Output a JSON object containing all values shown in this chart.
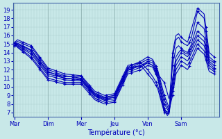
{
  "xlabel": "Température (°c)",
  "bg_color": "#c8e8e8",
  "line_color": "#0000bb",
  "ylim": [
    6.5,
    19.8
  ],
  "yticks": [
    7,
    8,
    9,
    10,
    11,
    12,
    13,
    14,
    15,
    16,
    17,
    18,
    19
  ],
  "day_labels": [
    "Mar",
    "Dim",
    "Mer",
    "Jeu",
    "Ven",
    "Sam"
  ],
  "series": [
    {
      "waypoints_t": [
        0,
        0.08,
        0.5,
        1.0,
        1.5,
        2.0,
        2.4,
        2.7,
        3.0,
        3.4,
        3.8,
        4.0,
        4.15,
        4.3,
        4.5,
        4.65,
        4.75,
        4.85,
        4.93,
        5.0,
        5.1,
        5.2,
        5.3,
        5.5,
        5.7,
        5.85,
        6.0
      ],
      "waypoints_v": [
        15.2,
        15.5,
        14.8,
        12.2,
        11.5,
        11.3,
        9.5,
        9.0,
        9.2,
        12.5,
        12.8,
        12.0,
        11.2,
        10.2,
        7.2,
        7.0,
        14.0,
        16.0,
        16.2,
        15.8,
        15.5,
        15.2,
        16.5,
        19.2,
        18.5,
        14.0,
        13.5
      ]
    },
    {
      "waypoints_t": [
        0,
        0.08,
        0.5,
        1.0,
        1.5,
        2.0,
        2.4,
        2.7,
        3.0,
        3.4,
        3.8,
        4.0,
        4.15,
        4.3,
        4.5,
        4.65,
        4.75,
        4.85,
        4.93,
        5.0,
        5.1,
        5.2,
        5.3,
        5.5,
        5.7,
        5.85,
        6.0
      ],
      "waypoints_v": [
        15.1,
        15.3,
        14.6,
        12.0,
        11.3,
        11.0,
        9.2,
        8.7,
        9.0,
        12.2,
        12.5,
        11.5,
        10.8,
        9.8,
        7.0,
        6.8,
        13.5,
        15.5,
        15.8,
        15.3,
        15.0,
        14.8,
        15.5,
        18.8,
        18.0,
        13.5,
        13.0
      ]
    },
    {
      "waypoints_t": [
        0,
        0.08,
        0.5,
        1.0,
        1.5,
        2.0,
        2.4,
        2.7,
        3.0,
        3.4,
        3.8,
        4.0,
        4.15,
        4.3,
        4.5,
        4.65,
        4.75,
        4.85,
        4.93,
        5.0,
        5.1,
        5.2,
        5.3,
        5.5,
        5.7,
        5.85,
        6.0
      ],
      "waypoints_v": [
        15.0,
        15.1,
        14.3,
        11.8,
        11.0,
        10.8,
        9.0,
        8.5,
        8.8,
        12.0,
        12.5,
        12.8,
        12.5,
        11.5,
        10.5,
        8.5,
        12.5,
        14.5,
        14.8,
        14.5,
        14.2,
        14.0,
        14.8,
        17.5,
        16.8,
        13.2,
        12.8
      ]
    },
    {
      "waypoints_t": [
        0,
        0.08,
        0.5,
        1.0,
        1.5,
        2.0,
        2.4,
        2.7,
        3.0,
        3.4,
        3.8,
        4.0,
        4.15,
        4.3,
        4.5,
        4.65,
        4.75,
        4.85,
        4.93,
        5.0,
        5.1,
        5.2,
        5.3,
        5.5,
        5.7,
        5.85,
        6.0
      ],
      "waypoints_v": [
        15.0,
        15.0,
        14.2,
        11.7,
        11.2,
        11.2,
        9.3,
        8.8,
        9.0,
        12.3,
        13.0,
        13.5,
        13.2,
        12.0,
        9.0,
        7.5,
        11.0,
        13.5,
        14.0,
        14.3,
        14.0,
        13.8,
        14.5,
        16.5,
        15.8,
        13.0,
        12.5
      ]
    },
    {
      "waypoints_t": [
        0,
        0.08,
        0.5,
        1.0,
        1.5,
        2.0,
        2.4,
        2.7,
        3.0,
        3.4,
        3.8,
        4.0,
        4.15,
        4.3,
        4.5,
        4.65,
        4.75,
        4.85,
        4.93,
        5.0,
        5.1,
        5.2,
        5.3,
        5.5,
        5.7,
        5.85,
        6.0
      ],
      "waypoints_v": [
        14.9,
        14.9,
        14.0,
        11.5,
        11.0,
        10.9,
        9.1,
        8.6,
        8.8,
        12.1,
        12.8,
        13.2,
        13.0,
        11.8,
        8.5,
        7.2,
        10.5,
        13.0,
        13.5,
        14.0,
        13.8,
        13.5,
        14.2,
        16.0,
        15.3,
        12.8,
        12.2
      ]
    },
    {
      "waypoints_t": [
        0,
        0.08,
        0.5,
        1.0,
        1.5,
        2.0,
        2.4,
        2.7,
        3.0,
        3.4,
        3.8,
        4.0,
        4.15,
        4.3,
        4.5,
        4.65,
        4.75,
        4.85,
        4.93,
        5.0,
        5.1,
        5.2,
        5.3,
        5.5,
        5.7,
        5.85,
        6.0
      ],
      "waypoints_v": [
        14.8,
        14.8,
        13.8,
        11.3,
        10.8,
        10.7,
        8.9,
        8.4,
        8.6,
        11.9,
        12.5,
        13.0,
        12.8,
        11.5,
        8.0,
        7.0,
        10.0,
        12.5,
        13.0,
        13.5,
        13.3,
        13.0,
        13.8,
        15.5,
        14.8,
        12.5,
        12.0
      ]
    },
    {
      "waypoints_t": [
        0,
        0.08,
        0.5,
        1.0,
        1.5,
        2.0,
        2.4,
        2.7,
        3.0,
        3.4,
        3.8,
        4.0,
        4.15,
        4.3,
        4.5,
        4.6,
        4.75,
        4.85,
        4.93,
        5.0,
        5.1,
        5.2,
        5.3,
        5.5,
        5.7,
        5.85,
        6.0
      ],
      "waypoints_v": [
        14.8,
        14.7,
        13.5,
        11.0,
        10.5,
        10.5,
        8.7,
        8.2,
        8.4,
        11.7,
        12.3,
        12.8,
        12.5,
        11.2,
        7.5,
        6.8,
        9.5,
        12.0,
        12.5,
        13.0,
        12.8,
        12.5,
        13.2,
        15.0,
        14.2,
        12.2,
        11.8
      ]
    },
    {
      "waypoints_t": [
        0,
        0.08,
        0.5,
        1.0,
        1.5,
        2.0,
        2.4,
        2.7,
        3.0,
        3.4,
        3.8,
        4.0,
        4.15,
        4.3,
        4.5,
        4.6,
        4.75,
        4.85,
        4.93,
        5.0,
        5.1,
        5.2,
        5.3,
        5.5,
        5.7,
        5.85,
        6.0
      ],
      "waypoints_v": [
        15.0,
        14.6,
        13.3,
        10.8,
        10.3,
        10.3,
        8.5,
        8.0,
        8.2,
        11.5,
        12.0,
        12.5,
        12.3,
        11.0,
        7.2,
        6.6,
        9.0,
        11.5,
        12.0,
        12.5,
        12.3,
        12.0,
        12.8,
        14.5,
        13.8,
        11.8,
        11.5
      ]
    }
  ]
}
